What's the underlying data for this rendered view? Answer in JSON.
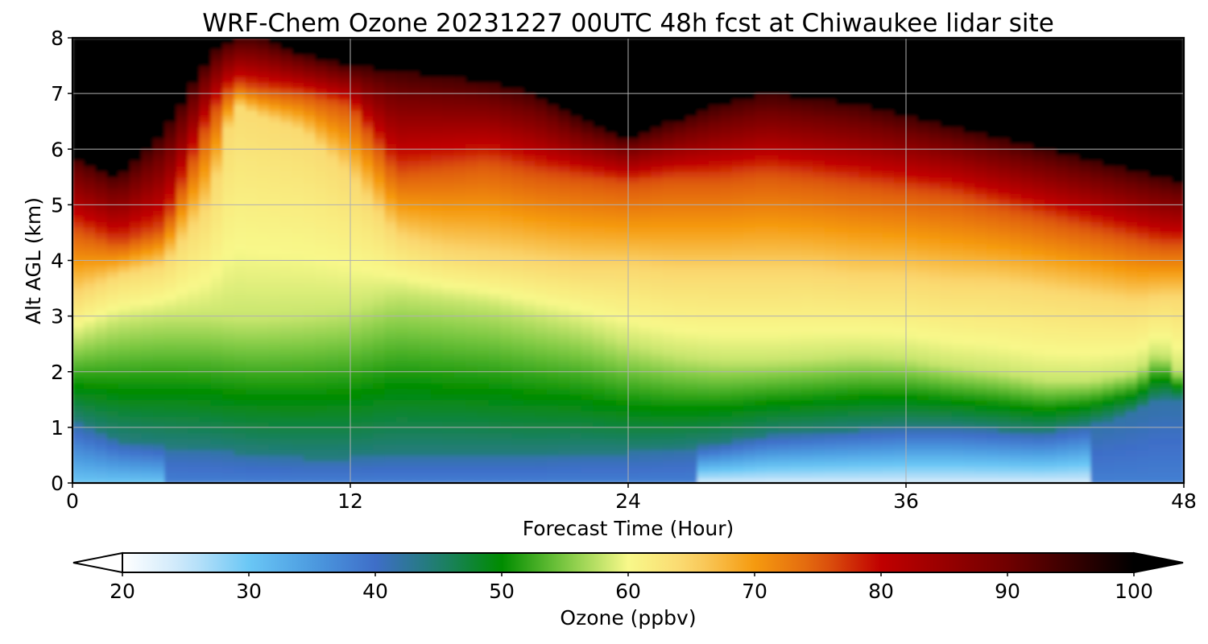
{
  "chart_data": {
    "type": "heatmap",
    "title": "WRF-Chem Ozone  20231227 00UTC 48h fcst at Chiwaukee lidar site",
    "xlabel": "Forecast Time (Hour)",
    "ylabel": "Alt AGL (km)",
    "xlim": [
      0,
      48
    ],
    "ylim": [
      0,
      8
    ],
    "xticks": [
      0,
      12,
      24,
      36,
      48
    ],
    "yticks": [
      0,
      1,
      2,
      3,
      4,
      5,
      6,
      7,
      8
    ],
    "grid": true,
    "colorbar": {
      "label": "Ozone  (ppbv)",
      "min": 20,
      "max": 100,
      "ticks": [
        20,
        30,
        40,
        50,
        60,
        70,
        80,
        90,
        100
      ],
      "extend": "both",
      "stops": [
        {
          "v": 20,
          "c": "#ffffff"
        },
        {
          "v": 25,
          "c": "#c8e6fa"
        },
        {
          "v": 30,
          "c": "#6ac7f5"
        },
        {
          "v": 35,
          "c": "#4c9be0"
        },
        {
          "v": 40,
          "c": "#3e6ec8"
        },
        {
          "v": 45,
          "c": "#1f7e6e"
        },
        {
          "v": 50,
          "c": "#008c00"
        },
        {
          "v": 55,
          "c": "#7cc842"
        },
        {
          "v": 60,
          "c": "#f8f88a"
        },
        {
          "v": 65,
          "c": "#fad46c"
        },
        {
          "v": 70,
          "c": "#f59a0f"
        },
        {
          "v": 75,
          "c": "#e0600f"
        },
        {
          "v": 80,
          "c": "#c00000"
        },
        {
          "v": 90,
          "c": "#700000"
        },
        {
          "v": 100,
          "c": "#000000"
        }
      ]
    },
    "x": [
      0,
      2,
      4,
      6,
      7,
      8,
      10,
      12,
      14,
      16,
      18,
      20,
      22,
      24,
      26,
      28,
      30,
      32,
      34,
      36,
      38,
      40,
      42,
      44,
      46,
      47,
      48
    ],
    "layers": {
      "alt_km": [
        0.0,
        0.4,
        1.0,
        1.5,
        2.0,
        2.5,
        3.0,
        3.5,
        4.0,
        4.5,
        5.0,
        5.5,
        6.0,
        6.5,
        7.0,
        7.5,
        8.0
      ],
      "blue_top": [
        1.1,
        0.75,
        0.65,
        0.6,
        0.55,
        0.5,
        0.45,
        0.45,
        0.5,
        0.5,
        0.5,
        0.5,
        0.55,
        0.55,
        0.6,
        0.7,
        0.85,
        0.9,
        0.95,
        1.0,
        1.0,
        0.95,
        0.9,
        1.05,
        1.3,
        1.55,
        1.5
      ],
      "green_top": [
        2.6,
        2.9,
        3.0,
        3.0,
        2.95,
        2.95,
        3.0,
        3.1,
        3.4,
        3.3,
        3.2,
        3.0,
        2.8,
        2.5,
        2.3,
        2.2,
        2.2,
        2.25,
        2.3,
        2.25,
        2.1,
        2.0,
        1.85,
        1.85,
        2.0,
        2.4,
        1.9
      ],
      "yellow_top": [
        3.3,
        3.7,
        3.9,
        5.0,
        6.8,
        6.6,
        6.3,
        5.5,
        4.4,
        4.1,
        4.0,
        3.9,
        3.8,
        3.8,
        3.7,
        3.7,
        3.7,
        3.7,
        3.6,
        3.6,
        3.5,
        3.5,
        3.4,
        3.3,
        3.2,
        3.3,
        3.3
      ],
      "orange_top": [
        4.6,
        4.3,
        4.6,
        6.6,
        7.2,
        7.1,
        7.0,
        6.8,
        5.6,
        5.7,
        5.8,
        5.6,
        5.5,
        5.4,
        5.5,
        5.5,
        5.6,
        5.5,
        5.4,
        5.3,
        5.2,
        5.0,
        4.8,
        4.6,
        4.4,
        4.3,
        4.3
      ],
      "red_top": [
        5.9,
        5.5,
        6.3,
        7.7,
        8.0,
        8.0,
        7.7,
        7.5,
        7.4,
        7.3,
        7.2,
        7.0,
        6.5,
        6.2,
        6.5,
        6.8,
        7.0,
        6.9,
        6.8,
        6.6,
        6.4,
        6.2,
        6.0,
        5.8,
        5.6,
        5.5,
        5.4
      ],
      "black_ppbv": 100
    }
  }
}
